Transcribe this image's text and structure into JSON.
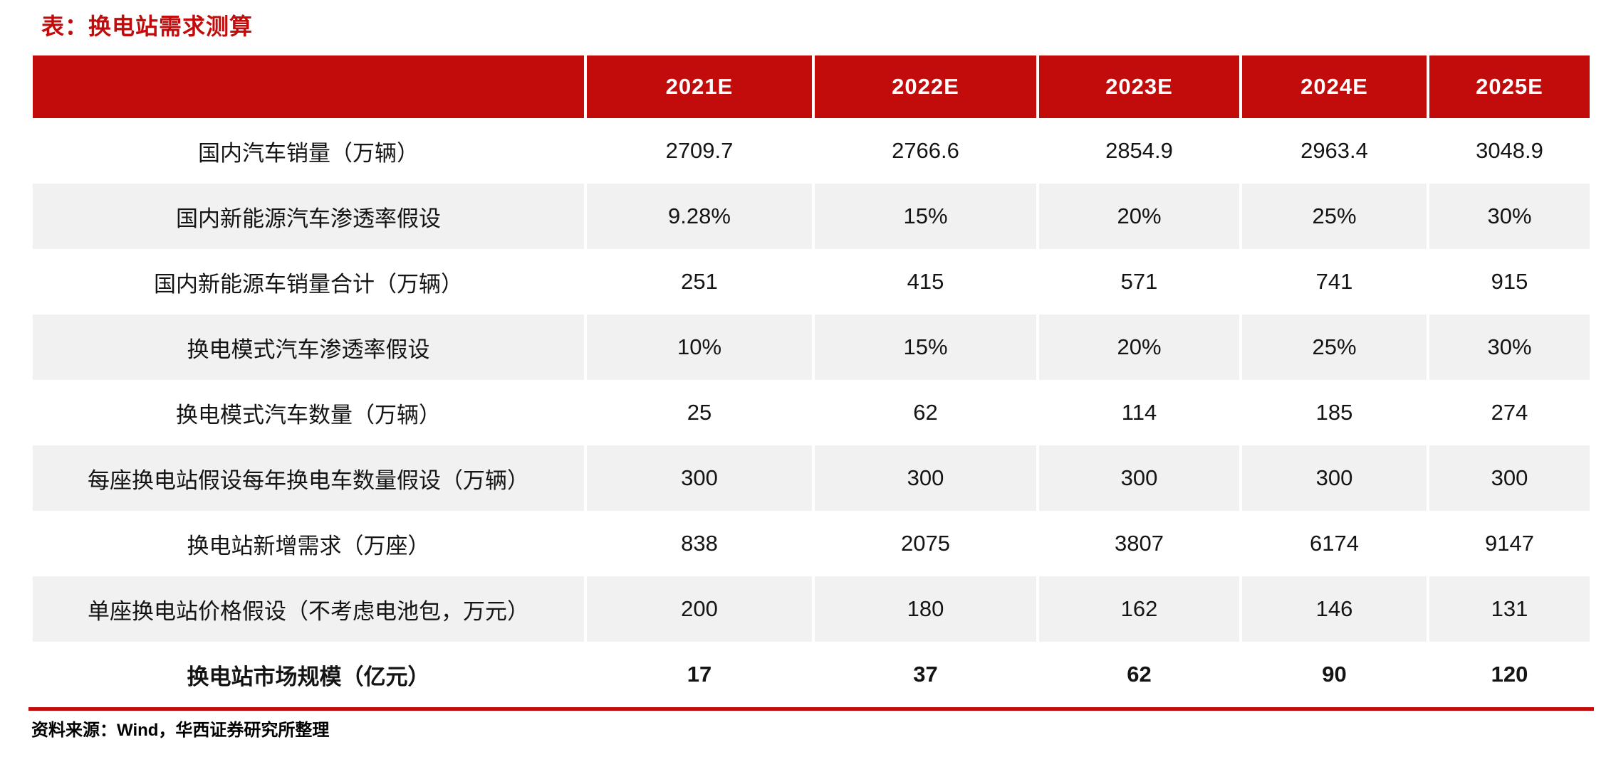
{
  "title": "表：换电站需求测算",
  "table": {
    "year_headers": [
      "2021E",
      "2022E",
      "2023E",
      "2024E",
      "2025E"
    ],
    "rows": [
      {
        "label": "国内汽车销量（万辆）",
        "values": [
          "2709.7",
          "2766.6",
          "2854.9",
          "2963.4",
          "3048.9"
        ],
        "bold": false
      },
      {
        "label": "国内新能源汽车渗透率假设",
        "values": [
          "9.28%",
          "15%",
          "20%",
          "25%",
          "30%"
        ],
        "bold": false
      },
      {
        "label": "国内新能源车销量合计（万辆）",
        "values": [
          "251",
          "415",
          "571",
          "741",
          "915"
        ],
        "bold": false
      },
      {
        "label": "换电模式汽车渗透率假设",
        "values": [
          "10%",
          "15%",
          "20%",
          "25%",
          "30%"
        ],
        "bold": false
      },
      {
        "label": "换电模式汽车数量（万辆）",
        "values": [
          "25",
          "62",
          "114",
          "185",
          "274"
        ],
        "bold": false
      },
      {
        "label": "每座换电站假设每年换电车数量假设（万辆）",
        "values": [
          "300",
          "300",
          "300",
          "300",
          "300"
        ],
        "bold": false
      },
      {
        "label": "换电站新增需求（万座）",
        "values": [
          "838",
          "2075",
          "3807",
          "6174",
          "9147"
        ],
        "bold": false
      },
      {
        "label": "单座换电站价格假设（不考虑电池包，万元）",
        "values": [
          "200",
          "180",
          "162",
          "146",
          "131"
        ],
        "bold": false
      },
      {
        "label": "换电站市场规模（亿元）",
        "values": [
          "17",
          "37",
          "62",
          "90",
          "120"
        ],
        "bold": true
      }
    ]
  },
  "footer": {
    "source": "资料来源：Wind，华西证券研究所整理"
  },
  "colors": {
    "accent_red": "#c20b0b",
    "stripe_gray": "#f1f1f1",
    "header_text": "#ffffff"
  },
  "chart_data": {
    "type": "table",
    "title": "表：换电站需求测算",
    "columns": [
      "",
      "2021E",
      "2022E",
      "2023E",
      "2024E",
      "2025E"
    ],
    "rows": [
      [
        "国内汽车销量（万辆）",
        2709.7,
        2766.6,
        2854.9,
        2963.4,
        3048.9
      ],
      [
        "国内新能源汽车渗透率假设",
        "9.28%",
        "15%",
        "20%",
        "25%",
        "30%"
      ],
      [
        "国内新能源车销量合计（万辆）",
        251,
        415,
        571,
        741,
        915
      ],
      [
        "换电模式汽车渗透率假设",
        "10%",
        "15%",
        "20%",
        "25%",
        "30%"
      ],
      [
        "换电模式汽车数量（万辆）",
        25,
        62,
        114,
        185,
        274
      ],
      [
        "每座换电站假设每年换电车数量假设（万辆）",
        300,
        300,
        300,
        300,
        300
      ],
      [
        "换电站新增需求（万座）",
        838,
        2075,
        3807,
        6174,
        9147
      ],
      [
        "单座换电站价格假设（不考虑电池包，万元）",
        200,
        180,
        162,
        146,
        131
      ],
      [
        "换电站市场规模（亿元）",
        17,
        37,
        62,
        90,
        120
      ]
    ]
  }
}
